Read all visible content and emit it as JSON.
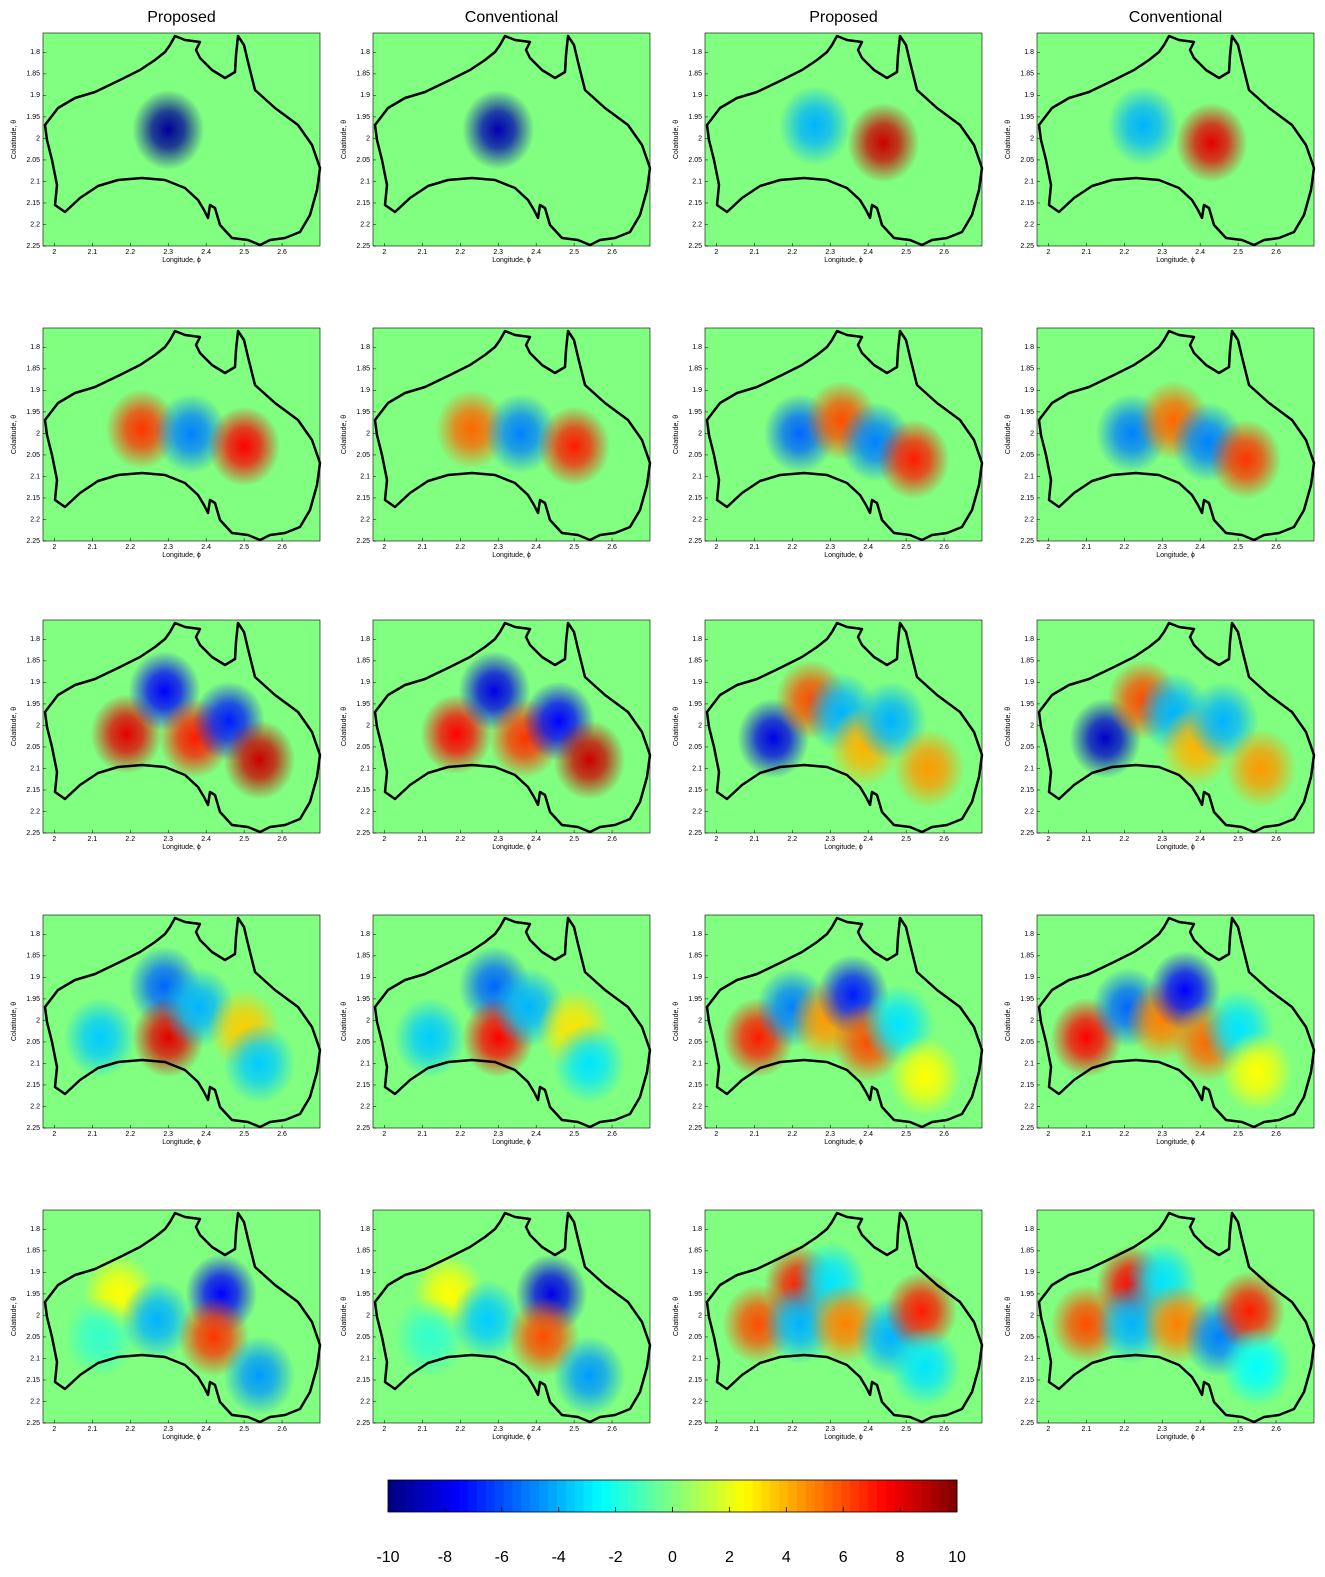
{
  "chart_data": [
    {
      "type": "heatmap",
      "title": "Proposed",
      "xlabel": "Longitude, ϕ",
      "ylabel": "Colatitude, θ",
      "xlim": [
        1.97,
        2.7
      ],
      "ylim": [
        1.755,
        2.25
      ],
      "y_reversed": true,
      "xticks": [
        2,
        2.1,
        2.2,
        2.3,
        2.4,
        2.5,
        2.6
      ],
      "yticks": [
        1.8,
        1.85,
        1.9,
        1.95,
        2,
        2.05,
        2.1,
        2.15,
        2.2,
        2.25
      ],
      "peaks": [
        {
          "x": 2.3,
          "y": 1.98,
          "value": -9.5
        }
      ]
    },
    {
      "type": "heatmap",
      "title": "Conventional",
      "xlabel": "Longitude, ϕ",
      "ylabel": "Colatitude, θ",
      "xlim": [
        1.97,
        2.7
      ],
      "ylim": [
        1.755,
        2.25
      ],
      "y_reversed": true,
      "xticks": [
        2,
        2.1,
        2.2,
        2.3,
        2.4,
        2.5,
        2.6
      ],
      "yticks": [
        1.8,
        1.85,
        1.9,
        1.95,
        2,
        2.05,
        2.1,
        2.15,
        2.2,
        2.25
      ],
      "peaks": [
        {
          "x": 2.3,
          "y": 1.98,
          "value": -9
        }
      ]
    },
    {
      "type": "heatmap",
      "title": "Proposed",
      "xlabel": "Longitude, ϕ",
      "ylabel": "Colatitude, θ",
      "xlim": [
        1.97,
        2.7
      ],
      "ylim": [
        1.755,
        2.25
      ],
      "y_reversed": true,
      "xticks": [
        2,
        2.1,
        2.2,
        2.3,
        2.4,
        2.5,
        2.6
      ],
      "yticks": [
        1.8,
        1.85,
        1.9,
        1.95,
        2,
        2.05,
        2.1,
        2.15,
        2.2,
        2.25
      ],
      "peaks": [
        {
          "x": 2.26,
          "y": 1.97,
          "value": -4
        },
        {
          "x": 2.44,
          "y": 2.01,
          "value": 8.5
        }
      ]
    },
    {
      "type": "heatmap",
      "title": "Conventional",
      "xlabel": "Longitude, ϕ",
      "ylabel": "Colatitude, θ",
      "xlim": [
        1.97,
        2.7
      ],
      "ylim": [
        1.755,
        2.25
      ],
      "y_reversed": true,
      "xticks": [
        2,
        2.1,
        2.2,
        2.3,
        2.4,
        2.5,
        2.6
      ],
      "yticks": [
        1.8,
        1.85,
        1.9,
        1.95,
        2,
        2.05,
        2.1,
        2.15,
        2.2,
        2.25
      ],
      "peaks": [
        {
          "x": 2.25,
          "y": 1.97,
          "value": -4
        },
        {
          "x": 2.43,
          "y": 2.01,
          "value": 8
        }
      ]
    },
    {
      "type": "heatmap",
      "xlabel": "Longitude, ϕ",
      "ylabel": "Colatitude, θ",
      "xlim": [
        1.97,
        2.7
      ],
      "ylim": [
        1.755,
        2.25
      ],
      "y_reversed": true,
      "xticks": [
        2,
        2.1,
        2.2,
        2.3,
        2.4,
        2.5,
        2.6
      ],
      "yticks": [
        1.8,
        1.85,
        1.9,
        1.95,
        2,
        2.05,
        2.1,
        2.15,
        2.2,
        2.25
      ],
      "peaks": [
        {
          "x": 2.23,
          "y": 1.99,
          "value": 6.5
        },
        {
          "x": 2.36,
          "y": 2.0,
          "value": -5
        },
        {
          "x": 2.5,
          "y": 2.03,
          "value": 7.5
        }
      ]
    },
    {
      "type": "heatmap",
      "xlabel": "Longitude, ϕ",
      "ylabel": "Colatitude, θ",
      "xlim": [
        1.97,
        2.7
      ],
      "ylim": [
        1.755,
        2.25
      ],
      "y_reversed": true,
      "xticks": [
        2,
        2.1,
        2.2,
        2.3,
        2.4,
        2.5,
        2.6
      ],
      "yticks": [
        1.8,
        1.85,
        1.9,
        1.95,
        2,
        2.05,
        2.1,
        2.15,
        2.2,
        2.25
      ],
      "peaks": [
        {
          "x": 2.23,
          "y": 1.99,
          "value": 5.5
        },
        {
          "x": 2.36,
          "y": 2.0,
          "value": -5
        },
        {
          "x": 2.5,
          "y": 2.03,
          "value": 7
        }
      ]
    },
    {
      "type": "heatmap",
      "xlabel": "Longitude, ϕ",
      "ylabel": "Colatitude, θ",
      "xlim": [
        1.97,
        2.7
      ],
      "ylim": [
        1.755,
        2.25
      ],
      "y_reversed": true,
      "xticks": [
        2,
        2.1,
        2.2,
        2.3,
        2.4,
        2.5,
        2.6
      ],
      "yticks": [
        1.8,
        1.85,
        1.9,
        1.95,
        2,
        2.05,
        2.1,
        2.15,
        2.2,
        2.25
      ],
      "peaks": [
        {
          "x": 2.22,
          "y": 2.0,
          "value": -5.5
        },
        {
          "x": 2.33,
          "y": 1.97,
          "value": 6
        },
        {
          "x": 2.42,
          "y": 2.02,
          "value": -5
        },
        {
          "x": 2.52,
          "y": 2.06,
          "value": 7
        }
      ]
    },
    {
      "type": "heatmap",
      "xlabel": "Longitude, ϕ",
      "ylabel": "Colatitude, θ",
      "xlim": [
        1.97,
        2.7
      ],
      "ylim": [
        1.755,
        2.25
      ],
      "y_reversed": true,
      "xticks": [
        2,
        2.1,
        2.2,
        2.3,
        2.4,
        2.5,
        2.6
      ],
      "yticks": [
        1.8,
        1.85,
        1.9,
        1.95,
        2,
        2.05,
        2.1,
        2.15,
        2.2,
        2.25
      ],
      "peaks": [
        {
          "x": 2.22,
          "y": 2.0,
          "value": -5
        },
        {
          "x": 2.33,
          "y": 1.97,
          "value": 5.5
        },
        {
          "x": 2.42,
          "y": 2.02,
          "value": -5
        },
        {
          "x": 2.52,
          "y": 2.06,
          "value": 6.5
        }
      ]
    },
    {
      "type": "heatmap",
      "xlabel": "Longitude, ϕ",
      "ylabel": "Colatitude, θ",
      "xlim": [
        1.97,
        2.7
      ],
      "ylim": [
        1.755,
        2.25
      ],
      "y_reversed": true,
      "xticks": [
        2,
        2.1,
        2.2,
        2.3,
        2.4,
        2.5,
        2.6
      ],
      "yticks": [
        1.8,
        1.85,
        1.9,
        1.95,
        2,
        2.05,
        2.1,
        2.15,
        2.2,
        2.25
      ],
      "peaks": [
        {
          "x": 2.19,
          "y": 2.02,
          "value": 8
        },
        {
          "x": 2.29,
          "y": 1.92,
          "value": -7.5
        },
        {
          "x": 2.37,
          "y": 2.03,
          "value": 7
        },
        {
          "x": 2.46,
          "y": 1.99,
          "value": -7
        },
        {
          "x": 2.54,
          "y": 2.08,
          "value": 8.5
        }
      ]
    },
    {
      "type": "heatmap",
      "xlabel": "Longitude, ϕ",
      "ylabel": "Colatitude, θ",
      "xlim": [
        1.97,
        2.7
      ],
      "ylim": [
        1.755,
        2.25
      ],
      "y_reversed": true,
      "xticks": [
        2,
        2.1,
        2.2,
        2.3,
        2.4,
        2.5,
        2.6
      ],
      "yticks": [
        1.8,
        1.85,
        1.9,
        1.95,
        2,
        2.05,
        2.1,
        2.15,
        2.2,
        2.25
      ],
      "peaks": [
        {
          "x": 2.19,
          "y": 2.02,
          "value": 7.5
        },
        {
          "x": 2.29,
          "y": 1.92,
          "value": -8
        },
        {
          "x": 2.37,
          "y": 2.03,
          "value": 6.5
        },
        {
          "x": 2.46,
          "y": 1.99,
          "value": -7.5
        },
        {
          "x": 2.54,
          "y": 2.08,
          "value": 8.5
        }
      ]
    },
    {
      "type": "heatmap",
      "xlabel": "Longitude, ϕ",
      "ylabel": "Colatitude, θ",
      "xlim": [
        1.97,
        2.7
      ],
      "ylim": [
        1.755,
        2.25
      ],
      "y_reversed": true,
      "xticks": [
        2,
        2.1,
        2.2,
        2.3,
        2.4,
        2.5,
        2.6
      ],
      "yticks": [
        1.8,
        1.85,
        1.9,
        1.95,
        2,
        2.05,
        2.1,
        2.15,
        2.2,
        2.25
      ],
      "peaks": [
        {
          "x": 2.15,
          "y": 2.03,
          "value": -8
        },
        {
          "x": 2.25,
          "y": 1.94,
          "value": 6
        },
        {
          "x": 2.33,
          "y": 1.97,
          "value": -4
        },
        {
          "x": 2.39,
          "y": 2.05,
          "value": 4
        },
        {
          "x": 2.46,
          "y": 1.99,
          "value": -4
        },
        {
          "x": 2.56,
          "y": 2.1,
          "value": 4.5
        }
      ]
    },
    {
      "type": "heatmap",
      "xlabel": "Longitude, ϕ",
      "ylabel": "Colatitude, θ",
      "xlim": [
        1.97,
        2.7
      ],
      "ylim": [
        1.755,
        2.25
      ],
      "y_reversed": true,
      "xticks": [
        2,
        2.1,
        2.2,
        2.3,
        2.4,
        2.5,
        2.6
      ],
      "yticks": [
        1.8,
        1.85,
        1.9,
        1.95,
        2,
        2.05,
        2.1,
        2.15,
        2.2,
        2.25
      ],
      "peaks": [
        {
          "x": 2.15,
          "y": 2.03,
          "value": -8.5
        },
        {
          "x": 2.25,
          "y": 1.94,
          "value": 6
        },
        {
          "x": 2.33,
          "y": 1.97,
          "value": -4
        },
        {
          "x": 2.39,
          "y": 2.05,
          "value": 4
        },
        {
          "x": 2.46,
          "y": 1.99,
          "value": -4
        },
        {
          "x": 2.56,
          "y": 2.1,
          "value": 4.5
        }
      ]
    },
    {
      "type": "heatmap",
      "xlabel": "Longitude, ϕ",
      "ylabel": "Colatitude, θ",
      "xlim": [
        1.97,
        2.7
      ],
      "ylim": [
        1.755,
        2.25
      ],
      "y_reversed": true,
      "xticks": [
        2,
        2.1,
        2.2,
        2.3,
        2.4,
        2.5,
        2.6
      ],
      "yticks": [
        1.8,
        1.85,
        1.9,
        1.95,
        2,
        2.05,
        2.1,
        2.15,
        2.2,
        2.25
      ],
      "peaks": [
        {
          "x": 2.12,
          "y": 2.04,
          "value": -3.5
        },
        {
          "x": 2.29,
          "y": 1.92,
          "value": -5.5
        },
        {
          "x": 2.3,
          "y": 2.04,
          "value": 8
        },
        {
          "x": 2.38,
          "y": 1.97,
          "value": -4
        },
        {
          "x": 2.5,
          "y": 2.02,
          "value": 3.5
        },
        {
          "x": 2.54,
          "y": 2.1,
          "value": -3.5
        }
      ]
    },
    {
      "type": "heatmap",
      "xlabel": "Longitude, ϕ",
      "ylabel": "Colatitude, θ",
      "xlim": [
        1.97,
        2.7
      ],
      "ylim": [
        1.755,
        2.25
      ],
      "y_reversed": true,
      "xticks": [
        2,
        2.1,
        2.2,
        2.3,
        2.4,
        2.5,
        2.6
      ],
      "yticks": [
        1.8,
        1.85,
        1.9,
        1.95,
        2,
        2.05,
        2.1,
        2.15,
        2.2,
        2.25
      ],
      "peaks": [
        {
          "x": 2.12,
          "y": 2.04,
          "value": -3.5
        },
        {
          "x": 2.29,
          "y": 1.92,
          "value": -5.5
        },
        {
          "x": 2.3,
          "y": 2.04,
          "value": 7.5
        },
        {
          "x": 2.38,
          "y": 1.97,
          "value": -4
        },
        {
          "x": 2.5,
          "y": 2.02,
          "value": 3
        },
        {
          "x": 2.54,
          "y": 2.1,
          "value": -3
        }
      ]
    },
    {
      "type": "heatmap",
      "xlabel": "Longitude, ϕ",
      "ylabel": "Colatitude, θ",
      "xlim": [
        1.97,
        2.7
      ],
      "ylim": [
        1.755,
        2.25
      ],
      "y_reversed": true,
      "xticks": [
        2,
        2.1,
        2.2,
        2.3,
        2.4,
        2.5,
        2.6
      ],
      "yticks": [
        1.8,
        1.85,
        1.9,
        1.95,
        2,
        2.05,
        2.1,
        2.15,
        2.2,
        2.25
      ],
      "peaks": [
        {
          "x": 2.11,
          "y": 2.04,
          "value": 7
        },
        {
          "x": 2.2,
          "y": 1.97,
          "value": -5
        },
        {
          "x": 2.29,
          "y": 2.0,
          "value": 4.5
        },
        {
          "x": 2.36,
          "y": 1.94,
          "value": -7
        },
        {
          "x": 2.4,
          "y": 2.05,
          "value": 6
        },
        {
          "x": 2.48,
          "y": 2.01,
          "value": -3
        },
        {
          "x": 2.55,
          "y": 2.13,
          "value": 2.5
        }
      ]
    },
    {
      "type": "heatmap",
      "xlabel": "Longitude, ϕ",
      "ylabel": "Colatitude, θ",
      "xlim": [
        1.97,
        2.7
      ],
      "ylim": [
        1.755,
        2.25
      ],
      "y_reversed": true,
      "xticks": [
        2,
        2.1,
        2.2,
        2.3,
        2.4,
        2.5,
        2.6
      ],
      "yticks": [
        1.8,
        1.85,
        1.9,
        1.95,
        2,
        2.05,
        2.1,
        2.15,
        2.2,
        2.25
      ],
      "peaks": [
        {
          "x": 2.1,
          "y": 2.04,
          "value": 7.5
        },
        {
          "x": 2.21,
          "y": 1.97,
          "value": -5.5
        },
        {
          "x": 2.3,
          "y": 2.0,
          "value": 5
        },
        {
          "x": 2.36,
          "y": 1.93,
          "value": -7.5
        },
        {
          "x": 2.42,
          "y": 2.05,
          "value": 5.5
        },
        {
          "x": 2.5,
          "y": 2.02,
          "value": -3
        },
        {
          "x": 2.55,
          "y": 2.12,
          "value": 2.5
        }
      ]
    },
    {
      "type": "heatmap",
      "xlabel": "Longitude, ϕ",
      "ylabel": "Colatitude, θ",
      "xlim": [
        1.97,
        2.7
      ],
      "ylim": [
        1.755,
        2.25
      ],
      "y_reversed": true,
      "xticks": [
        2,
        2.1,
        2.2,
        2.3,
        2.4,
        2.5,
        2.6
      ],
      "yticks": [
        1.8,
        1.85,
        1.9,
        1.95,
        2,
        2.05,
        2.1,
        2.15,
        2.2,
        2.25
      ],
      "peaks": [
        {
          "x": 2.17,
          "y": 1.95,
          "value": 2.5
        },
        {
          "x": 2.12,
          "y": 2.05,
          "value": -1.5
        },
        {
          "x": 2.27,
          "y": 2.01,
          "value": -4
        },
        {
          "x": 2.44,
          "y": 1.95,
          "value": -7.5
        },
        {
          "x": 2.42,
          "y": 2.05,
          "value": 6.5
        },
        {
          "x": 2.54,
          "y": 2.14,
          "value": -4.5
        }
      ]
    },
    {
      "type": "heatmap",
      "xlabel": "Longitude, ϕ",
      "ylabel": "Colatitude, θ",
      "xlim": [
        1.97,
        2.7
      ],
      "ylim": [
        1.755,
        2.25
      ],
      "y_reversed": true,
      "xticks": [
        2,
        2.1,
        2.2,
        2.3,
        2.4,
        2.5,
        2.6
      ],
      "yticks": [
        1.8,
        1.85,
        1.9,
        1.95,
        2,
        2.05,
        2.1,
        2.15,
        2.2,
        2.25
      ],
      "peaks": [
        {
          "x": 2.17,
          "y": 1.95,
          "value": 2.5
        },
        {
          "x": 2.12,
          "y": 2.05,
          "value": -1.5
        },
        {
          "x": 2.27,
          "y": 2.01,
          "value": -3.5
        },
        {
          "x": 2.44,
          "y": 1.95,
          "value": -8
        },
        {
          "x": 2.42,
          "y": 2.05,
          "value": 6
        },
        {
          "x": 2.54,
          "y": 2.14,
          "value": -4.5
        }
      ]
    },
    {
      "type": "heatmap",
      "xlabel": "Longitude, ϕ",
      "ylabel": "Colatitude, θ",
      "xlim": [
        1.97,
        2.7
      ],
      "ylim": [
        1.755,
        2.25
      ],
      "y_reversed": true,
      "xticks": [
        2,
        2.1,
        2.2,
        2.3,
        2.4,
        2.5,
        2.6
      ],
      "yticks": [
        1.8,
        1.85,
        1.9,
        1.95,
        2,
        2.05,
        2.1,
        2.15,
        2.2,
        2.25
      ],
      "peaks": [
        {
          "x": 2.11,
          "y": 2.02,
          "value": 6
        },
        {
          "x": 2.22,
          "y": 1.93,
          "value": 7
        },
        {
          "x": 2.22,
          "y": 2.02,
          "value": -4
        },
        {
          "x": 2.3,
          "y": 1.92,
          "value": -3
        },
        {
          "x": 2.34,
          "y": 2.02,
          "value": 5
        },
        {
          "x": 2.46,
          "y": 2.05,
          "value": -4
        },
        {
          "x": 2.54,
          "y": 1.99,
          "value": 7
        },
        {
          "x": 2.55,
          "y": 2.12,
          "value": -3
        }
      ]
    },
    {
      "type": "heatmap",
      "xlabel": "Longitude, ϕ",
      "ylabel": "Colatitude, θ",
      "xlim": [
        1.97,
        2.7
      ],
      "ylim": [
        1.755,
        2.25
      ],
      "y_reversed": true,
      "xticks": [
        2,
        2.1,
        2.2,
        2.3,
        2.4,
        2.5,
        2.6
      ],
      "yticks": [
        1.8,
        1.85,
        1.9,
        1.95,
        2,
        2.05,
        2.1,
        2.15,
        2.2,
        2.25
      ],
      "peaks": [
        {
          "x": 2.1,
          "y": 2.02,
          "value": 6
        },
        {
          "x": 2.22,
          "y": 1.93,
          "value": 7.5
        },
        {
          "x": 2.22,
          "y": 2.02,
          "value": -4
        },
        {
          "x": 2.3,
          "y": 1.92,
          "value": -3
        },
        {
          "x": 2.34,
          "y": 2.02,
          "value": 5
        },
        {
          "x": 2.45,
          "y": 2.05,
          "value": -5
        },
        {
          "x": 2.53,
          "y": 1.99,
          "value": 7
        },
        {
          "x": 2.55,
          "y": 2.12,
          "value": -2.5
        }
      ]
    }
  ],
  "colorbar": {
    "clim": [
      -10,
      10
    ],
    "ticks": [
      -10,
      -8,
      -6,
      -4,
      -2,
      0,
      2,
      4,
      6,
      8,
      10
    ],
    "colormap": "jet"
  }
}
